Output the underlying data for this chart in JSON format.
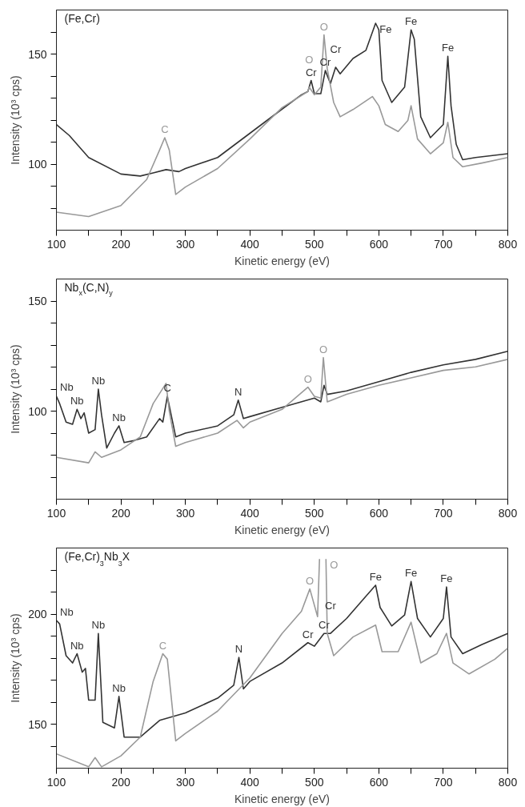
{
  "chart_data": [
    {
      "type": "line",
      "title": "(Fe,Cr)",
      "xlabel": "Kinetic energy (eV)",
      "ylabel": "Intensity (10³ cps)",
      "xlim": [
        100,
        800
      ],
      "ylim": [
        70,
        170
      ],
      "xticks": [
        100,
        {
          "value": 150,
          "label": null
        },
        200,
        {
          "value": 250,
          "label": null
        },
        300,
        {
          "value": 350,
          "label": null
        },
        400,
        {
          "value": 450,
          "label": null
        },
        500,
        {
          "value": 550,
          "label": null
        },
        600,
        {
          "value": 650,
          "label": null
        },
        700,
        {
          "value": 750,
          "label": null
        },
        800
      ],
      "yticks": [
        {
          "value": 80,
          "label": null
        },
        {
          "value": 90,
          "label": null
        },
        100,
        {
          "value": 110,
          "label": null
        },
        {
          "value": 120,
          "label": null
        },
        {
          "value": 130,
          "label": null
        },
        {
          "value": 140,
          "label": null
        },
        150,
        {
          "value": 160,
          "label": null
        }
      ],
      "grid": false,
      "marker": "none",
      "line_style": "solid",
      "series": [
        {
          "color": "#333333",
          "x": [
            100,
            120,
            150,
            200,
            230,
            250,
            270,
            290,
            300,
            350,
            400,
            450,
            480,
            490,
            495,
            500,
            510,
            517,
            525,
            533,
            540,
            560,
            580,
            595,
            600,
            605,
            620,
            640,
            650,
            655,
            665,
            680,
            700,
            707,
            712,
            720,
            730,
            750,
            800
          ],
          "values": [
            118,
            113,
            103,
            95.5,
            94.6,
            96,
            97.5,
            96.6,
            98,
            103,
            114,
            125,
            131.5,
            133,
            138,
            132,
            132,
            142.5,
            136.6,
            144,
            141,
            148,
            151.7,
            164,
            161,
            138,
            128,
            135,
            161,
            156.7,
            121.5,
            112,
            118,
            149,
            126.5,
            109,
            102,
            103,
            104.7
          ]
        },
        {
          "color": "#999999",
          "x": [
            100,
            150,
            200,
            240,
            260,
            268,
            275,
            285,
            300,
            350,
            400,
            450,
            490,
            492,
            500,
            510,
            515,
            520,
            530,
            540,
            560,
            590,
            600,
            610,
            630,
            645,
            650,
            660,
            680,
            700,
            707,
            715,
            730,
            760,
            800
          ],
          "values": [
            78.2,
            76.2,
            81.2,
            93,
            106.4,
            112,
            106.4,
            86.2,
            89.6,
            98,
            111.4,
            125.7,
            133,
            135,
            131.5,
            135,
            158.7,
            143.3,
            128,
            121.5,
            124.8,
            130.7,
            126.5,
            118,
            114.8,
            119.8,
            126.5,
            111.4,
            104.7,
            109.7,
            119,
            103,
            98.8,
            100.5,
            103
          ]
        }
      ],
      "annotations": [
        {
          "text": "C",
          "x": 268,
          "y": 112
        },
        {
          "text": "Cr",
          "x": 495,
          "y": 138
        },
        {
          "text": "O",
          "x": 492,
          "y": 135
        },
        {
          "text": "O",
          "x": 515,
          "y": 158.7
        },
        {
          "text": "Cr",
          "x": 517,
          "y": 142.5
        },
        {
          "text": "Cr",
          "x": 533,
          "y": 144
        },
        {
          "text": "Fe",
          "x": 595,
          "y": 164
        },
        {
          "text": "Fe",
          "x": 650,
          "y": 161
        },
        {
          "text": "Fe",
          "x": 707,
          "y": 149
        }
      ]
    },
    {
      "type": "line",
      "title": "Nb$_{x}$(C,N)$_{y}$",
      "xlabel": "Kinetic energy (eV)",
      "ylabel": "Intensity (10³ cps)",
      "xlim": [
        100,
        800
      ],
      "ylim": [
        60,
        160
      ],
      "xticks": [
        100,
        {
          "value": 150,
          "label": null
        },
        200,
        {
          "value": 250,
          "label": null
        },
        300,
        {
          "value": 350,
          "label": null
        },
        400,
        {
          "value": 450,
          "label": null
        },
        500,
        {
          "value": 550,
          "label": null
        },
        600,
        {
          "value": 650,
          "label": null
        },
        700,
        {
          "value": 750,
          "label": null
        },
        800
      ],
      "yticks": [
        {
          "value": 70,
          "label": null
        },
        {
          "value": 80,
          "label": null
        },
        {
          "value": 90,
          "label": null
        },
        100,
        {
          "value": 110,
          "label": null
        },
        {
          "value": 120,
          "label": null
        },
        {
          "value": 130,
          "label": null
        },
        {
          "value": 140,
          "label": null
        },
        150
      ],
      "grid": false,
      "marker": "none",
      "line_style": "solid",
      "series": [
        {
          "color": "#333333",
          "x": [
            100,
            105,
            115,
            125,
            132,
            138,
            143,
            150,
            160,
            165,
            170,
            178,
            190,
            197,
            205,
            220,
            240,
            260,
            265,
            272,
            285,
            300,
            350,
            375,
            382,
            390,
            400,
            450,
            500,
            510,
            515,
            520,
            550,
            600,
            650,
            700,
            750,
            800
          ],
          "values": [
            106.7,
            103.4,
            95,
            94,
            100.8,
            96.6,
            99.2,
            90,
            91.6,
            110,
            98.3,
            83.2,
            90,
            93.3,
            85.7,
            86.6,
            88.3,
            96.6,
            95,
            106.7,
            88.3,
            90,
            93.3,
            98.3,
            105,
            96.6,
            97.5,
            101.7,
            105.9,
            104.2,
            111.7,
            107.6,
            109.2,
            113.4,
            117.6,
            121,
            123.5,
            127.2
          ]
        },
        {
          "color": "#999999",
          "x": [
            100,
            150,
            160,
            170,
            200,
            230,
            250,
            270,
            275,
            285,
            300,
            350,
            380,
            390,
            400,
            450,
            490,
            500,
            510,
            514,
            520,
            550,
            600,
            650,
            700,
            750,
            800
          ],
          "values": [
            79,
            76.5,
            81.5,
            79,
            82.4,
            88.3,
            103.4,
            112.6,
            100,
            84,
            85.7,
            90,
            95.8,
            92.4,
            95,
            100.8,
            110.9,
            106.7,
            105.9,
            124.3,
            104.2,
            107.6,
            111.7,
            115.1,
            118.5,
            120.1,
            123.5
          ]
        }
      ],
      "annotations": [
        {
          "text": "Nb",
          "x": 102,
          "y": 107
        },
        {
          "text": "Nb",
          "x": 132,
          "y": 100.8
        },
        {
          "text": "Nb",
          "x": 165,
          "y": 110
        },
        {
          "text": "Nb",
          "x": 197,
          "y": 93.3
        },
        {
          "text": "C",
          "x": 272,
          "y": 106.7
        },
        {
          "text": "N",
          "x": 382,
          "y": 105
        },
        {
          "text": "O",
          "x": 490,
          "y": 110.9
        },
        {
          "text": "O",
          "x": 514,
          "y": 124.3
        }
      ]
    },
    {
      "type": "line",
      "title": "(Fe,Cr)$_{3}$Nb$_{3}$X",
      "xlabel": "Kinetic energy (eV)",
      "ylabel": "Intensity (10³ cps)",
      "xlim": [
        100,
        800
      ],
      "ylim": [
        130,
        230
      ],
      "xticks": [
        100,
        {
          "value": 150,
          "label": null
        },
        200,
        {
          "value": 250,
          "label": null
        },
        300,
        {
          "value": 350,
          "label": null
        },
        400,
        {
          "value": 450,
          "label": null
        },
        500,
        {
          "value": 550,
          "label": null
        },
        600,
        {
          "value": 650,
          "label": null
        },
        700,
        {
          "value": 750,
          "label": null
        },
        800
      ],
      "yticks": [
        {
          "value": 140,
          "label": null
        },
        150,
        {
          "value": 160,
          "label": null
        },
        {
          "value": 170,
          "label": null
        },
        {
          "value": 180,
          "label": null
        },
        {
          "value": 190,
          "label": null
        },
        200,
        {
          "value": 210,
          "label": null
        },
        {
          "value": 220,
          "label": null
        }
      ],
      "grid": false,
      "marker": "none",
      "line_style": "solid",
      "series": [
        {
          "color": "#333333",
          "x": [
            100,
            105,
            115,
            125,
            132,
            140,
            145,
            150,
            160,
            165,
            172,
            190,
            197,
            205,
            230,
            260,
            300,
            350,
            375,
            383,
            390,
            400,
            450,
            490,
            500,
            515,
            525,
            550,
            580,
            595,
            602,
            620,
            640,
            650,
            660,
            680,
            700,
            705,
            712,
            730,
            760,
            800
          ],
          "values": [
            197.1,
            195.5,
            181.1,
            177.8,
            182,
            173.6,
            175.3,
            160.9,
            160.9,
            191.2,
            150.8,
            148.3,
            162.6,
            144.1,
            144.1,
            151.7,
            155.1,
            161.8,
            167.7,
            180.3,
            166,
            169.4,
            177.8,
            187,
            185.4,
            191.2,
            191.2,
            198,
            208.1,
            213.1,
            203,
            194.6,
            199.6,
            214.8,
            198,
            189.6,
            198,
            212.3,
            189.6,
            182,
            186.2,
            191.2
          ]
        },
        {
          "color": "#999999",
          "x": [
            100,
            150,
            160,
            170,
            200,
            230,
            250,
            265,
            272,
            285,
            300,
            350,
            400,
            450,
            480,
            493,
            505,
            508,
            510,
            515,
            518,
            520,
            530,
            560,
            595,
            605,
            630,
            650,
            665,
            690,
            705,
            715,
            740,
            780,
            800
          ],
          "values": [
            136.5,
            130.6,
            134.8,
            130.6,
            135.6,
            144.1,
            169.4,
            182,
            179.5,
            142.4,
            145.8,
            155.9,
            171,
            191.2,
            201.3,
            211.4,
            198.8,
            225,
            null,
            null,
            225,
            191.2,
            181.1,
            189.6,
            195,
            182.9,
            182.9,
            196.3,
            177.8,
            182,
            191.2,
            177.8,
            172.8,
            179.5,
            184.5
          ]
        }
      ],
      "annotations": [
        {
          "text": "Nb",
          "x": 102,
          "y": 197.1
        },
        {
          "text": "Nb",
          "x": 132,
          "y": 182
        },
        {
          "text": "Nb",
          "x": 165,
          "y": 191.2
        },
        {
          "text": "Nb",
          "x": 197,
          "y": 162.6
        },
        {
          "text": "C",
          "x": 265,
          "y": 182
        },
        {
          "text": "N",
          "x": 383,
          "y": 180.3
        },
        {
          "text": "O",
          "x": 493,
          "y": 211.4
        },
        {
          "text": "O",
          "x": 518,
          "y": 225
        },
        {
          "text": "Cr",
          "x": 490,
          "y": 187
        },
        {
          "text": "Cr",
          "x": 515,
          "y": 191.2
        },
        {
          "text": "Cr",
          "x": 525,
          "y": 191.2
        },
        {
          "text": "Fe",
          "x": 595,
          "y": 213.1
        },
        {
          "text": "Fe",
          "x": 650,
          "y": 214.8
        },
        {
          "text": "Fe",
          "x": 705,
          "y": 212.3
        }
      ]
    }
  ]
}
